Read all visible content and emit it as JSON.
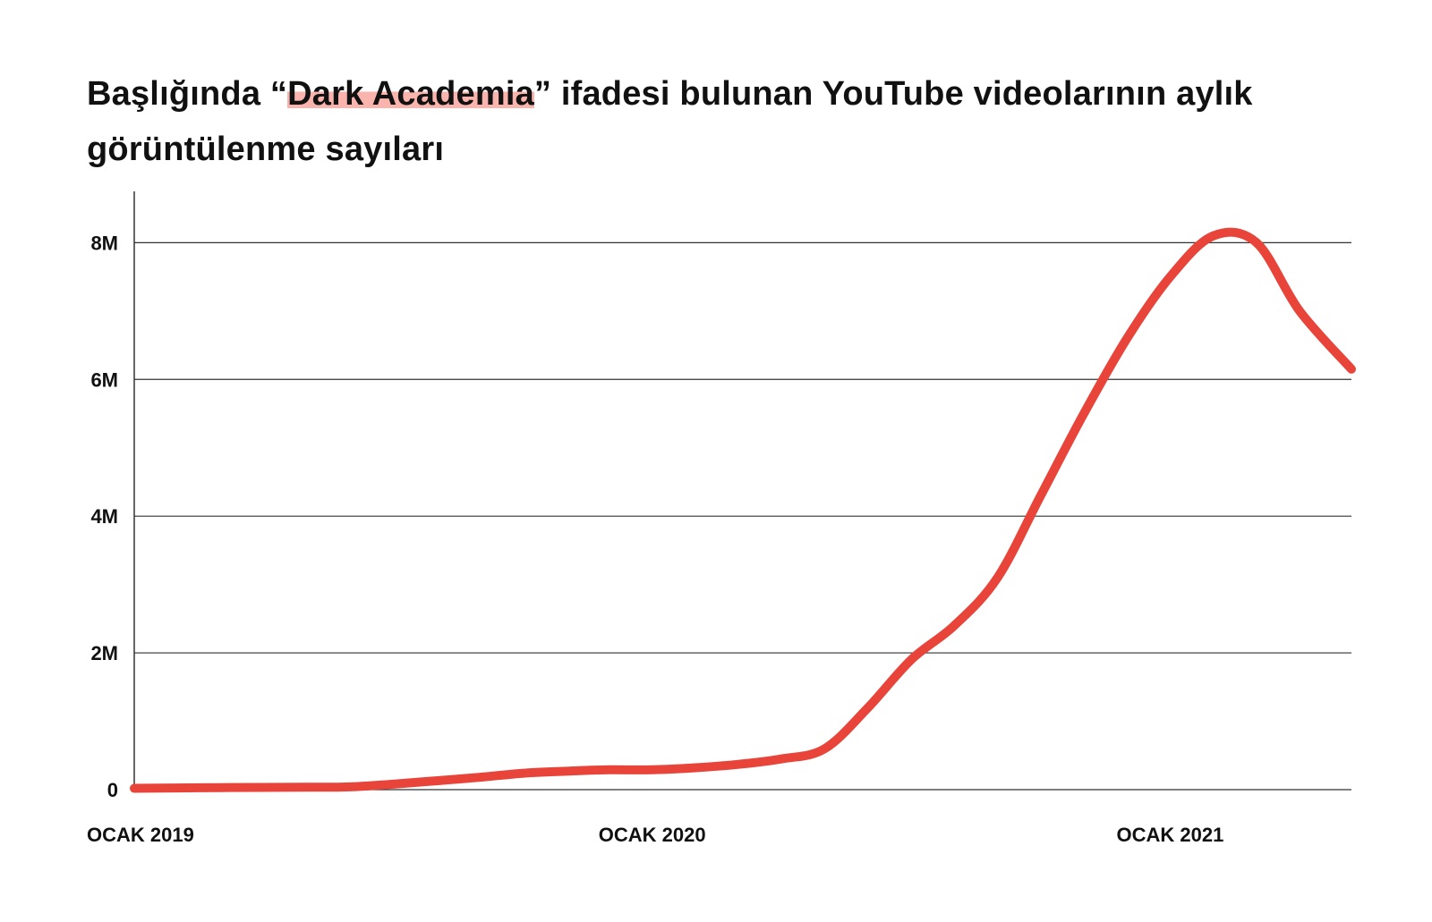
{
  "title": {
    "before": "Başlığında “",
    "highlight": "Dark Academia",
    "after": "” ifadesi bulunan YouTube videolarının aylık görüntülenme sayıları"
  },
  "colors": {
    "line": "#e8443a",
    "highlight": "#f8b4ad",
    "grid": "#333333",
    "text": "#111111"
  },
  "chart_data": {
    "type": "line",
    "title": "Başlığında “Dark Academia” ifadesi bulunan YouTube videolarının aylık görüntülenme sayıları",
    "xlabel": "",
    "ylabel": "",
    "x_unit": "months since Jan 2019",
    "x_ticks": [
      {
        "label": "OCAK 2019",
        "value": 0
      },
      {
        "label": "OCAK 2020",
        "value": 12
      },
      {
        "label": "OCAK 2021",
        "value": 24
      }
    ],
    "y_ticks": [
      {
        "label": "0",
        "value": 0
      },
      {
        "label": "2M",
        "value": 2000000
      },
      {
        "label": "4M",
        "value": 4000000
      },
      {
        "label": "6M",
        "value": 6000000
      },
      {
        "label": "8M",
        "value": 8000000
      }
    ],
    "xlim": [
      0,
      28.2
    ],
    "ylim": [
      0,
      8750000
    ],
    "grid": true,
    "legend": "none",
    "series": [
      {
        "x": [
          0,
          1,
          2,
          3,
          4,
          5,
          6,
          7,
          8,
          9,
          10,
          11,
          12,
          13,
          14,
          15,
          16,
          17,
          18,
          19,
          20,
          21,
          22,
          23,
          24,
          25,
          26,
          27,
          28.2
        ],
        "values": [
          20000,
          25000,
          30000,
          33000,
          35000,
          40000,
          80000,
          130000,
          180000,
          240000,
          270000,
          290000,
          290000,
          320000,
          370000,
          450000,
          600000,
          1200000,
          1900000,
          2400000,
          3100000,
          4300000,
          5500000,
          6600000,
          7500000,
          8100000,
          8000000,
          7000000,
          6150000
        ]
      }
    ]
  }
}
